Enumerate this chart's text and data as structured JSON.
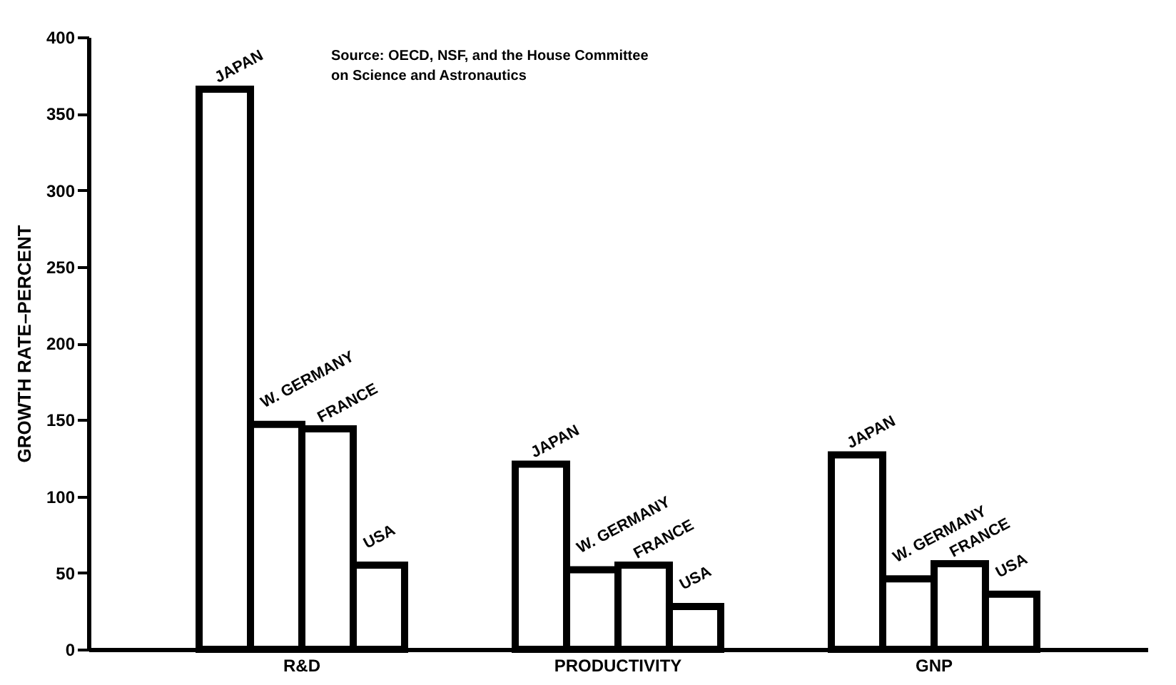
{
  "chart_data": {
    "type": "bar",
    "ylabel": "GROWTH RATE–PERCENT",
    "annotations": [
      "Source:  OECD, NSF, and the House Committee on Science and Astronautics"
    ],
    "categories": [
      "R&D",
      "PRODUCTIVITY",
      "GNP"
    ],
    "series": [
      {
        "name": "JAPAN",
        "color": "#000000",
        "values": [
          366,
          121,
          127
        ]
      },
      {
        "name": "W. GERMANY",
        "color": "#000000",
        "values": [
          147,
          52,
          46
        ]
      },
      {
        "name": "FRANCE",
        "color": "#000000",
        "values": [
          144,
          55,
          56
        ]
      },
      {
        "name": "USA",
        "color": "#000000",
        "values": [
          55,
          28,
          36
        ]
      }
    ],
    "ylim": [
      0,
      400
    ],
    "yticks": [
      0,
      50,
      100,
      150,
      200,
      250,
      300,
      350,
      400
    ],
    "grid": false
  }
}
